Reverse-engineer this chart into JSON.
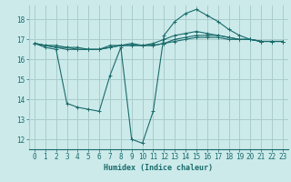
{
  "xlabel": "Humidex (Indice chaleur)",
  "ylabel": "",
  "bg_color": "#cceaea",
  "grid_color": "#aacccc",
  "line_color": "#1a6b6b",
  "xlim": [
    -0.5,
    23.5
  ],
  "ylim": [
    11.5,
    18.7
  ],
  "xticks": [
    0,
    1,
    2,
    3,
    4,
    5,
    6,
    7,
    8,
    9,
    10,
    11,
    12,
    13,
    14,
    15,
    16,
    17,
    18,
    19,
    20,
    21,
    22,
    23
  ],
  "yticks": [
    12,
    13,
    14,
    15,
    16,
    17,
    18
  ],
  "series": [
    [
      16.8,
      16.7,
      16.7,
      16.6,
      16.5,
      16.5,
      16.5,
      16.6,
      16.7,
      16.7,
      16.7,
      16.7,
      16.8,
      16.9,
      17.0,
      17.1,
      17.1,
      17.1,
      17.0,
      17.0,
      17.0,
      16.9,
      16.9,
      16.9
    ],
    [
      16.8,
      16.7,
      16.6,
      16.6,
      16.6,
      16.5,
      16.5,
      16.6,
      16.7,
      16.7,
      16.7,
      16.7,
      16.8,
      17.0,
      17.1,
      17.2,
      17.2,
      17.2,
      17.1,
      17.0,
      17.0,
      16.9,
      16.9,
      16.9
    ],
    [
      16.8,
      16.7,
      16.6,
      16.5,
      16.5,
      16.5,
      16.5,
      16.7,
      16.7,
      16.8,
      16.7,
      16.8,
      17.0,
      17.2,
      17.3,
      17.4,
      17.3,
      17.2,
      17.1,
      17.0,
      17.0,
      16.9,
      16.9,
      16.9
    ],
    [
      16.8,
      16.6,
      16.5,
      13.8,
      13.6,
      13.5,
      13.4,
      15.2,
      16.6,
      12.0,
      11.8,
      13.4,
      17.2,
      17.9,
      18.3,
      18.5,
      18.2,
      17.9,
      17.5,
      17.2,
      17.0,
      16.9,
      16.9,
      16.9
    ]
  ]
}
